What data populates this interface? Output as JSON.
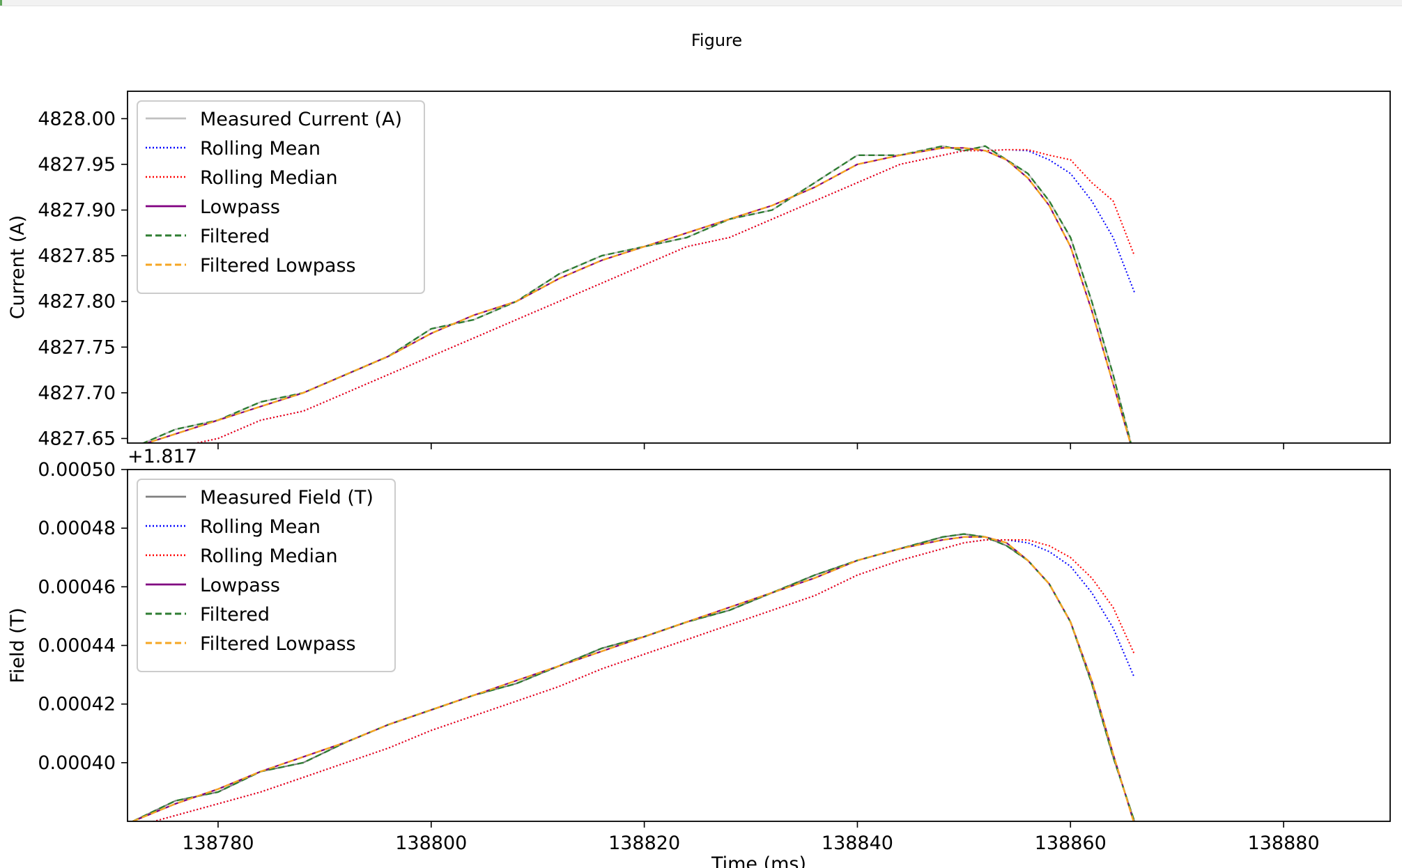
{
  "window": {
    "title": "Figure"
  },
  "chart_data": [
    {
      "type": "line",
      "title": "",
      "xlabel": "",
      "ylabel": "Current (A)",
      "xlim": [
        138771.5,
        138890
      ],
      "ylim": [
        4827.645,
        4828.03
      ],
      "x_ticks": [
        "138780",
        "138800",
        "138820",
        "138840",
        "138860",
        "138880"
      ],
      "y_ticks": [
        "4827.65",
        "4827.70",
        "4827.75",
        "4827.80",
        "4827.85",
        "4827.90",
        "4827.95",
        "4828.00"
      ],
      "legend_position": "upper left",
      "x": [
        138772,
        138776,
        138780,
        138784,
        138788,
        138792,
        138796,
        138800,
        138804,
        138808,
        138812,
        138816,
        138820,
        138824,
        138828,
        138832,
        138836,
        138840,
        138844,
        138848,
        138850,
        138852,
        138854,
        138856,
        138858,
        138860,
        138862,
        138864,
        138866
      ],
      "series": [
        {
          "name": "Measured Current (A)",
          "color": "#c0c0c0",
          "style": "solid",
          "values": [
            4827.64,
            4827.66,
            4827.67,
            4827.69,
            4827.7,
            4827.72,
            4827.74,
            4827.77,
            4827.78,
            4827.8,
            4827.83,
            4827.85,
            4827.86,
            4827.87,
            4827.89,
            4827.9,
            4827.93,
            4827.96,
            4827.96,
            4827.97,
            4827.965,
            4827.97,
            4827.955,
            4827.94,
            4827.91,
            4827.87,
            4827.8,
            4827.72,
            4827.63
          ]
        },
        {
          "name": "Rolling Mean",
          "color": "#0000ff",
          "style": "dotted",
          "values": [
            4827.63,
            4827.64,
            4827.65,
            4827.67,
            4827.68,
            4827.7,
            4827.72,
            4827.74,
            4827.76,
            4827.78,
            4827.8,
            4827.82,
            4827.84,
            4827.86,
            4827.87,
            4827.89,
            4827.91,
            4827.93,
            4827.95,
            4827.96,
            4827.965,
            4827.965,
            4827.966,
            4827.965,
            4827.955,
            4827.94,
            4827.91,
            4827.87,
            4827.81
          ]
        },
        {
          "name": "Rolling Median",
          "color": "#ff0000",
          "style": "dotted",
          "values": [
            4827.63,
            4827.64,
            4827.65,
            4827.67,
            4827.68,
            4827.7,
            4827.72,
            4827.74,
            4827.76,
            4827.78,
            4827.8,
            4827.82,
            4827.84,
            4827.86,
            4827.87,
            4827.89,
            4827.91,
            4827.93,
            4827.95,
            4827.96,
            4827.965,
            4827.965,
            4827.966,
            4827.966,
            4827.96,
            4827.955,
            4827.93,
            4827.91,
            4827.85
          ]
        },
        {
          "name": "Lowpass",
          "color": "#800080",
          "style": "solid",
          "values": [
            4827.64,
            4827.655,
            4827.67,
            4827.685,
            4827.7,
            4827.72,
            4827.74,
            4827.765,
            4827.785,
            4827.8,
            4827.825,
            4827.845,
            4827.86,
            4827.875,
            4827.89,
            4827.905,
            4827.925,
            4827.95,
            4827.96,
            4827.968,
            4827.968,
            4827.965,
            4827.955,
            4827.935,
            4827.905,
            4827.86,
            4827.79,
            4827.71,
            4827.63
          ]
        },
        {
          "name": "Filtered",
          "color": "#2e7d32",
          "style": "dashed",
          "values": [
            4827.64,
            4827.66,
            4827.67,
            4827.69,
            4827.7,
            4827.72,
            4827.74,
            4827.77,
            4827.78,
            4827.8,
            4827.83,
            4827.85,
            4827.86,
            4827.87,
            4827.89,
            4827.9,
            4827.93,
            4827.96,
            4827.96,
            4827.97,
            4827.965,
            4827.97,
            4827.955,
            4827.94,
            4827.91,
            4827.87,
            4827.8,
            4827.72,
            4827.63
          ]
        },
        {
          "name": "Filtered Lowpass",
          "color": "#f5a623",
          "style": "dashed",
          "values": [
            4827.64,
            4827.655,
            4827.67,
            4827.685,
            4827.7,
            4827.72,
            4827.74,
            4827.765,
            4827.785,
            4827.8,
            4827.825,
            4827.845,
            4827.86,
            4827.875,
            4827.89,
            4827.905,
            4827.925,
            4827.95,
            4827.96,
            4827.968,
            4827.968,
            4827.965,
            4827.955,
            4827.935,
            4827.905,
            4827.86,
            4827.79,
            4827.71,
            4827.63
          ]
        }
      ]
    },
    {
      "type": "line",
      "title": "",
      "xlabel": "Time (ms)",
      "ylabel": "Field (T)",
      "y_offset_label": "+1.817",
      "xlim": [
        138771.5,
        138890
      ],
      "ylim": [
        0.00038,
        0.0005
      ],
      "x_ticks": [
        "138780",
        "138800",
        "138820",
        "138840",
        "138860",
        "138880"
      ],
      "y_ticks": [
        "0.00040",
        "0.00042",
        "0.00044",
        "0.00046",
        "0.00048",
        "0.00050"
      ],
      "legend_position": "upper left",
      "x": [
        138772,
        138776,
        138780,
        138784,
        138788,
        138792,
        138796,
        138800,
        138804,
        138808,
        138812,
        138816,
        138820,
        138824,
        138828,
        138832,
        138836,
        138840,
        138844,
        138848,
        138850,
        138852,
        138854,
        138856,
        138858,
        138860,
        138862,
        138864,
        138866
      ],
      "series": [
        {
          "name": "Measured Field (T)",
          "color": "#808080",
          "style": "solid",
          "values": [
            0.00038,
            0.000387,
            0.00039,
            0.000397,
            0.0004,
            0.000407,
            0.000413,
            0.000418,
            0.000423,
            0.000427,
            0.000433,
            0.000439,
            0.000443,
            0.000448,
            0.000452,
            0.000458,
            0.000464,
            0.000469,
            0.000473,
            0.000477,
            0.000478,
            0.000477,
            0.000474,
            0.000469,
            0.000461,
            0.000448,
            0.000427,
            0.000402,
            0.00038
          ]
        },
        {
          "name": "Rolling Mean",
          "color": "#0000ff",
          "style": "dotted",
          "values": [
            0.000378,
            0.000382,
            0.000386,
            0.00039,
            0.000395,
            0.0004,
            0.000405,
            0.000411,
            0.000416,
            0.000421,
            0.000426,
            0.000432,
            0.000437,
            0.000442,
            0.000447,
            0.000452,
            0.000457,
            0.000464,
            0.000469,
            0.000473,
            0.000475,
            0.000476,
            0.000476,
            0.000475,
            0.000472,
            0.000467,
            0.000458,
            0.000446,
            0.000429
          ]
        },
        {
          "name": "Rolling Median",
          "color": "#ff0000",
          "style": "dotted",
          "values": [
            0.000378,
            0.000382,
            0.000386,
            0.00039,
            0.000395,
            0.0004,
            0.000405,
            0.000411,
            0.000416,
            0.000421,
            0.000426,
            0.000432,
            0.000437,
            0.000442,
            0.000447,
            0.000452,
            0.000457,
            0.000464,
            0.000469,
            0.000473,
            0.000475,
            0.000476,
            0.000476,
            0.000476,
            0.000474,
            0.00047,
            0.000463,
            0.000453,
            0.000437
          ]
        },
        {
          "name": "Lowpass",
          "color": "#800080",
          "style": "solid",
          "values": [
            0.00038,
            0.000386,
            0.000391,
            0.000397,
            0.000402,
            0.000407,
            0.000413,
            0.000418,
            0.000423,
            0.000428,
            0.000433,
            0.000438,
            0.000443,
            0.000448,
            0.000453,
            0.000458,
            0.000463,
            0.000469,
            0.000473,
            0.000476,
            0.000477,
            0.000477,
            0.000475,
            0.000469,
            0.000461,
            0.000448,
            0.000428,
            0.000403,
            0.000379
          ]
        },
        {
          "name": "Filtered",
          "color": "#2e7d32",
          "style": "dashed",
          "values": [
            0.00038,
            0.000387,
            0.00039,
            0.000397,
            0.0004,
            0.000407,
            0.000413,
            0.000418,
            0.000423,
            0.000427,
            0.000433,
            0.000439,
            0.000443,
            0.000448,
            0.000452,
            0.000458,
            0.000464,
            0.000469,
            0.000473,
            0.000477,
            0.000478,
            0.000477,
            0.000474,
            0.000469,
            0.000461,
            0.000448,
            0.000427,
            0.000402,
            0.00038
          ]
        },
        {
          "name": "Filtered Lowpass",
          "color": "#f5a623",
          "style": "dashed",
          "values": [
            0.00038,
            0.000386,
            0.000391,
            0.000397,
            0.000402,
            0.000407,
            0.000413,
            0.000418,
            0.000423,
            0.000428,
            0.000433,
            0.000438,
            0.000443,
            0.000448,
            0.000453,
            0.000458,
            0.000463,
            0.000469,
            0.000473,
            0.000476,
            0.000477,
            0.000477,
            0.000475,
            0.000469,
            0.000461,
            0.000448,
            0.000428,
            0.000403,
            0.000379
          ]
        }
      ]
    }
  ]
}
